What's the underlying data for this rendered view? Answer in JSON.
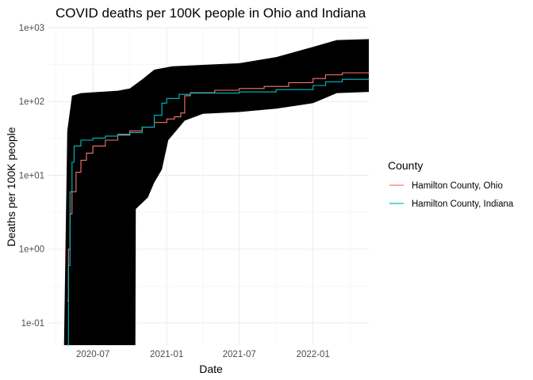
{
  "chart_data": {
    "type": "line",
    "title": "COVID deaths per 100K people in Ohio and Indiana",
    "xlabel": "Date",
    "ylabel": "Deaths per 100K people",
    "x_axis": {
      "kind": "date",
      "range": [
        "2020-03-10",
        "2022-05-20"
      ],
      "ticks": [
        "2020-07-01",
        "2021-01-01",
        "2021-07-01",
        "2022-01-01"
      ],
      "tick_labels": [
        "2020-07",
        "2021-01",
        "2021-07",
        "2022-01"
      ]
    },
    "y_axis": {
      "scale": "log10",
      "range": [
        0.05,
        1000
      ],
      "ticks": [
        0.1,
        1,
        10,
        100,
        1000
      ],
      "tick_labels": [
        "1e-01",
        "1e+00",
        "1e+01",
        "1e+02",
        "1e+03"
      ]
    },
    "grid": true,
    "legend": {
      "title": "County",
      "placement": "right"
    },
    "background_band": {
      "color": "#000000",
      "lower": [
        {
          "x": "2020-03-10",
          "y": 0.05
        },
        {
          "x": "2020-10-15",
          "y": 0.05
        },
        {
          "x": "2020-10-16",
          "y": 3.5
        },
        {
          "x": "2020-11-15",
          "y": 5.0
        },
        {
          "x": "2020-12-01",
          "y": 8.0
        },
        {
          "x": "2020-12-20",
          "y": 12.0
        },
        {
          "x": "2021-01-05",
          "y": 30.0
        },
        {
          "x": "2021-02-15",
          "y": 55.0
        },
        {
          "x": "2021-04-01",
          "y": 68.0
        },
        {
          "x": "2021-07-01",
          "y": 72.0
        },
        {
          "x": "2021-10-01",
          "y": 80.0
        },
        {
          "x": "2022-01-01",
          "y": 95.0
        },
        {
          "x": "2022-03-01",
          "y": 130.0
        },
        {
          "x": "2022-05-20",
          "y": 135.0
        }
      ],
      "upper": [
        {
          "x": "2020-03-10",
          "y": 0.05
        },
        {
          "x": "2020-04-20",
          "y": 0.05
        },
        {
          "x": "2020-04-28",
          "y": 40.0
        },
        {
          "x": "2020-05-10",
          "y": 120.0
        },
        {
          "x": "2020-06-01",
          "y": 130.0
        },
        {
          "x": "2020-09-01",
          "y": 140.0
        },
        {
          "x": "2020-10-01",
          "y": 150.0
        },
        {
          "x": "2020-11-01",
          "y": 200.0
        },
        {
          "x": "2020-12-01",
          "y": 270.0
        },
        {
          "x": "2021-01-15",
          "y": 300.0
        },
        {
          "x": "2021-07-01",
          "y": 330.0
        },
        {
          "x": "2021-10-01",
          "y": 400.0
        },
        {
          "x": "2022-01-01",
          "y": 550.0
        },
        {
          "x": "2022-03-01",
          "y": 680.0
        },
        {
          "x": "2022-05-20",
          "y": 700.0
        }
      ]
    },
    "series": [
      {
        "name": "Hamilton County, Ohio",
        "color": "#F8766D",
        "points": [
          {
            "x": "2020-04-28",
            "y": 0.2
          },
          {
            "x": "2020-05-01",
            "y": 1.0
          },
          {
            "x": "2020-05-05",
            "y": 3.0
          },
          {
            "x": "2020-05-10",
            "y": 6.0
          },
          {
            "x": "2020-05-20",
            "y": 11.0
          },
          {
            "x": "2020-06-01",
            "y": 16.0
          },
          {
            "x": "2020-06-15",
            "y": 20.0
          },
          {
            "x": "2020-07-01",
            "y": 25.0
          },
          {
            "x": "2020-08-01",
            "y": 30.0
          },
          {
            "x": "2020-09-01",
            "y": 35.0
          },
          {
            "x": "2020-10-01",
            "y": 40.0
          },
          {
            "x": "2020-11-01",
            "y": 45.0
          },
          {
            "x": "2020-12-01",
            "y": 52.0
          },
          {
            "x": "2021-01-01",
            "y": 58.0
          },
          {
            "x": "2021-01-20",
            "y": 62.0
          },
          {
            "x": "2021-02-05",
            "y": 70.0
          },
          {
            "x": "2021-02-15",
            "y": 120.0
          },
          {
            "x": "2021-03-01",
            "y": 132.0
          },
          {
            "x": "2021-05-01",
            "y": 142.0
          },
          {
            "x": "2021-07-01",
            "y": 150.0
          },
          {
            "x": "2021-09-01",
            "y": 160.0
          },
          {
            "x": "2021-11-01",
            "y": 180.0
          },
          {
            "x": "2022-01-01",
            "y": 205.0
          },
          {
            "x": "2022-02-01",
            "y": 230.0
          },
          {
            "x": "2022-03-15",
            "y": 245.0
          },
          {
            "x": "2022-05-20",
            "y": 250.0
          }
        ]
      },
      {
        "name": "Hamilton County, Indiana",
        "color": "#00BFC4",
        "points": [
          {
            "x": "2020-04-28",
            "y": 0.05
          },
          {
            "x": "2020-05-01",
            "y": 0.6
          },
          {
            "x": "2020-05-05",
            "y": 6.0
          },
          {
            "x": "2020-05-10",
            "y": 15.0
          },
          {
            "x": "2020-05-15",
            "y": 25.0
          },
          {
            "x": "2020-06-01",
            "y": 30.0
          },
          {
            "x": "2020-07-01",
            "y": 32.0
          },
          {
            "x": "2020-08-01",
            "y": 34.0
          },
          {
            "x": "2020-09-01",
            "y": 36.0
          },
          {
            "x": "2020-10-01",
            "y": 38.0
          },
          {
            "x": "2020-11-01",
            "y": 45.0
          },
          {
            "x": "2020-12-01",
            "y": 65.0
          },
          {
            "x": "2020-12-20",
            "y": 95.0
          },
          {
            "x": "2021-01-01",
            "y": 110.0
          },
          {
            "x": "2021-02-01",
            "y": 125.0
          },
          {
            "x": "2021-03-01",
            "y": 130.0
          },
          {
            "x": "2021-07-01",
            "y": 135.0
          },
          {
            "x": "2021-10-01",
            "y": 145.0
          },
          {
            "x": "2022-01-01",
            "y": 165.0
          },
          {
            "x": "2022-02-01",
            "y": 185.0
          },
          {
            "x": "2022-03-15",
            "y": 200.0
          },
          {
            "x": "2022-05-20",
            "y": 205.0
          }
        ]
      }
    ]
  }
}
